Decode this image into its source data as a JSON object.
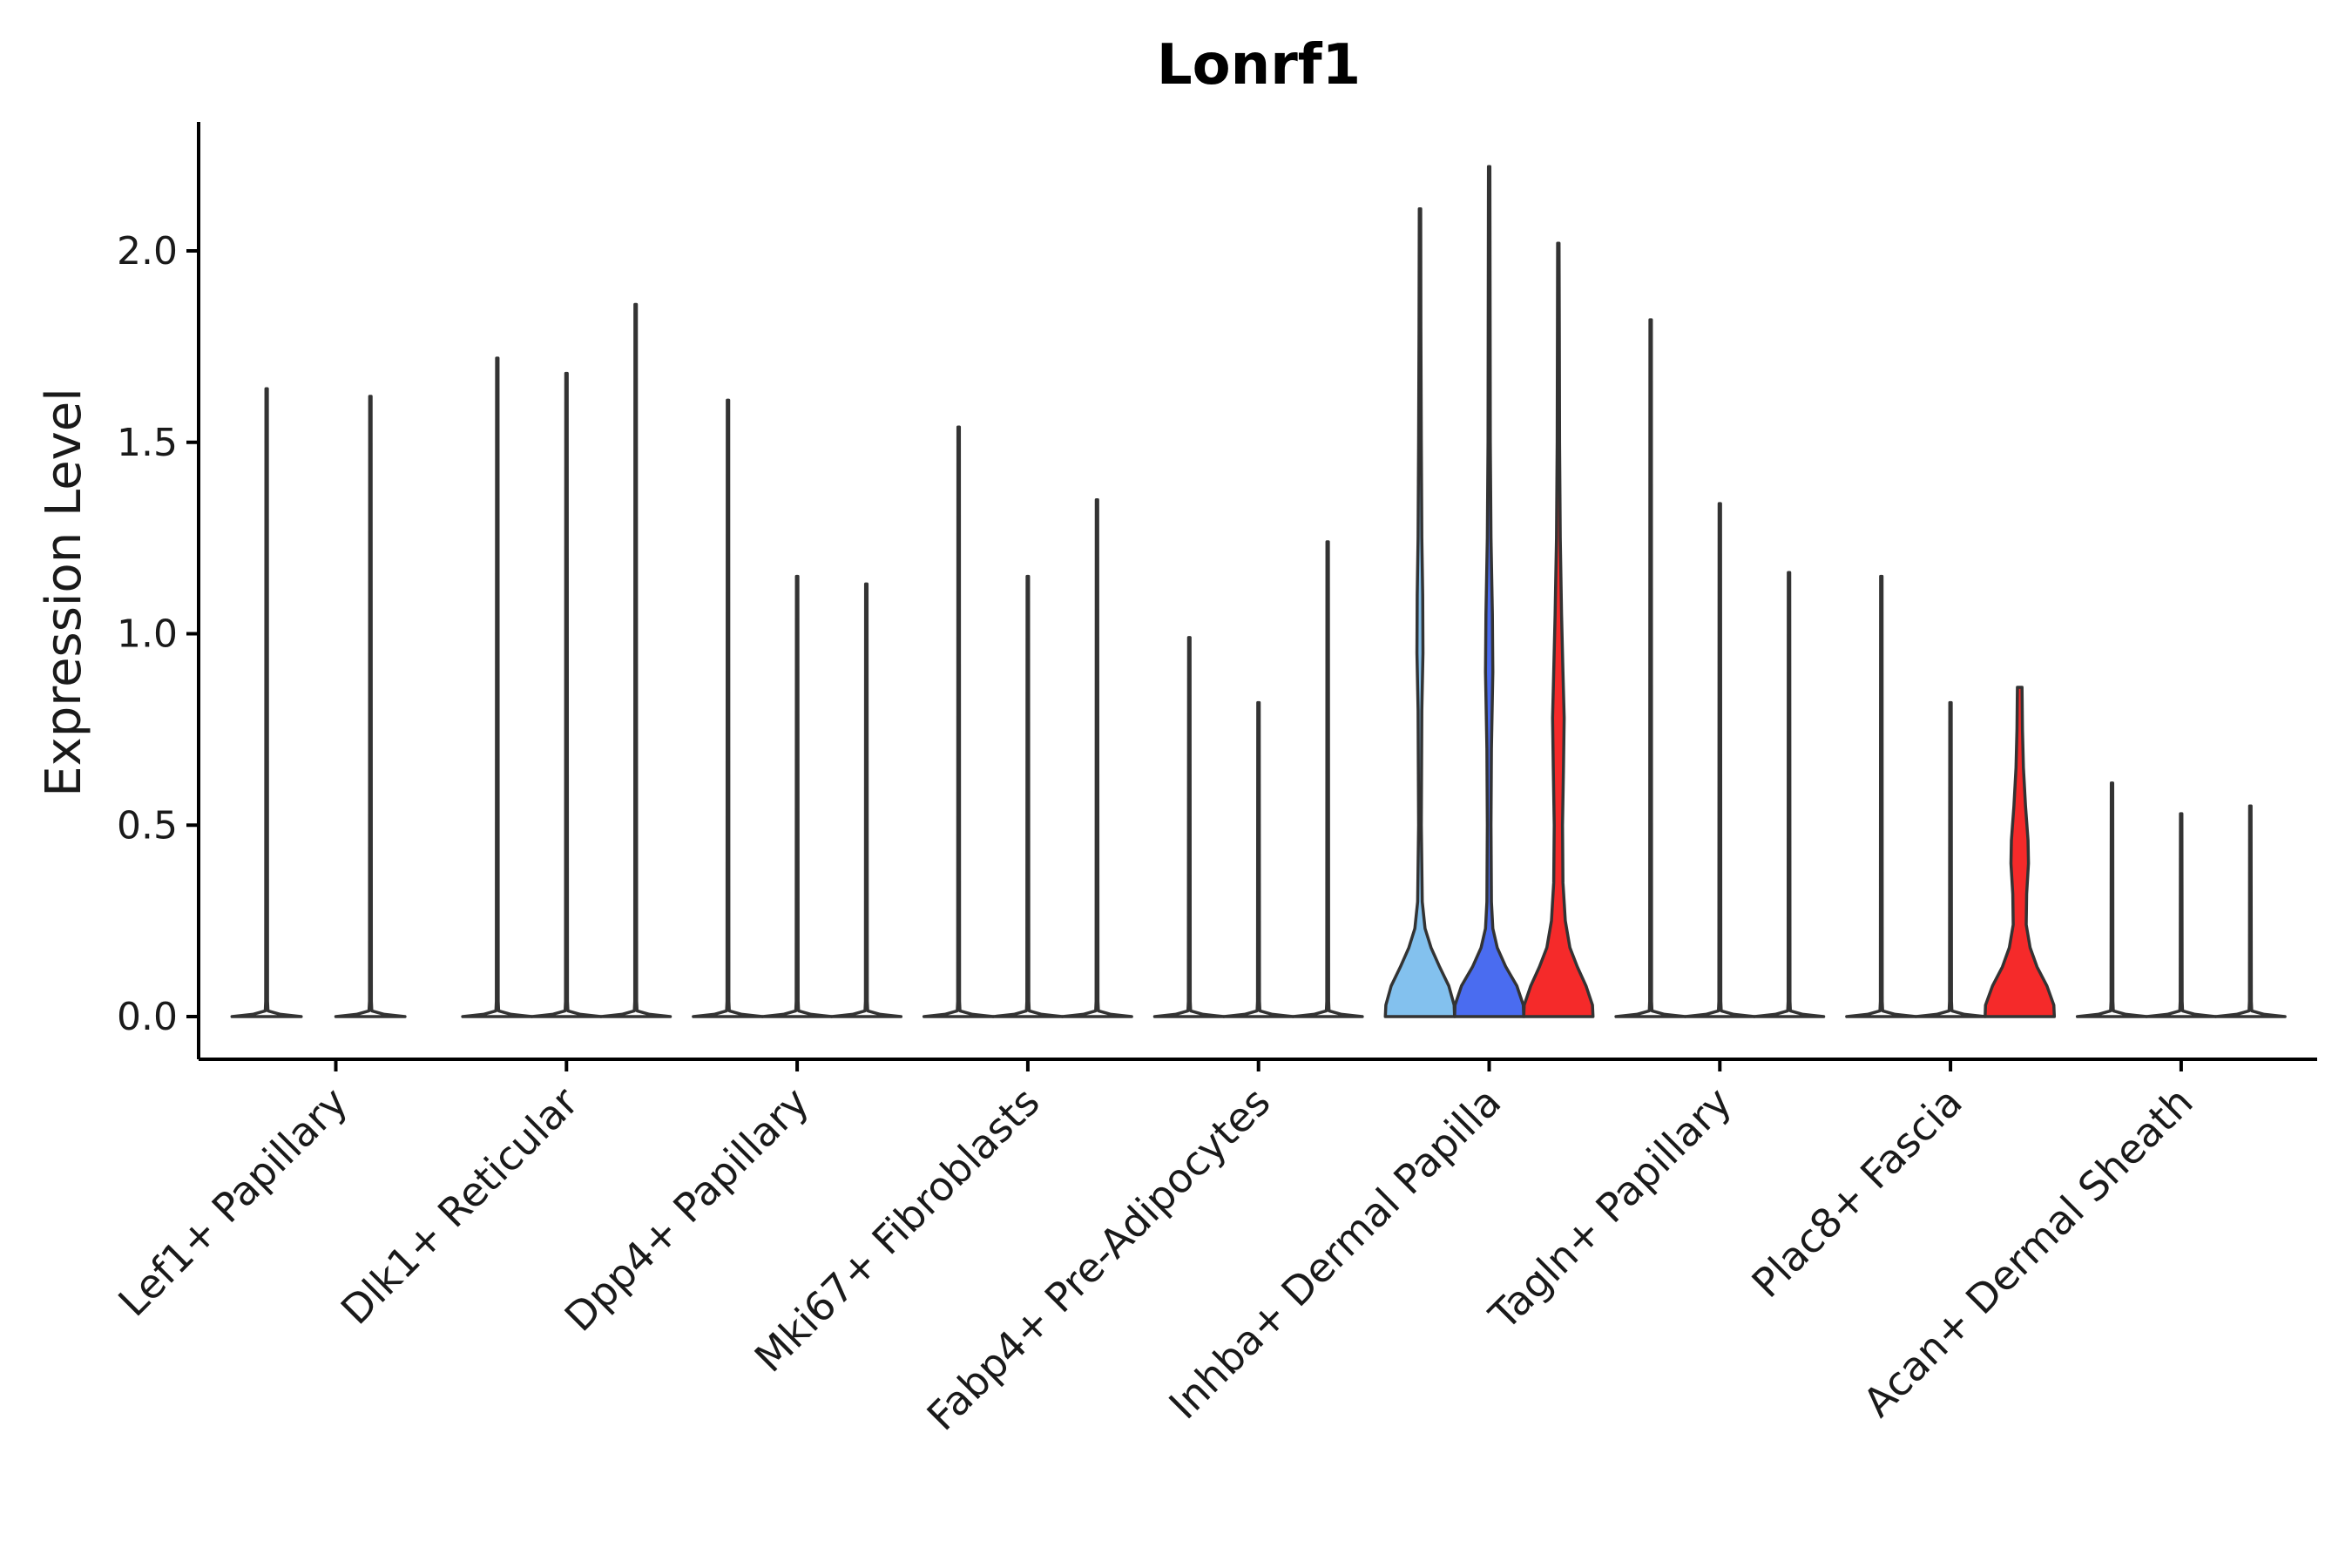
{
  "chart_data": {
    "type": "violin",
    "title": "Lonrf1",
    "xlabel": "",
    "ylabel": "Expression Level",
    "ylim": [
      -0.11,
      2.33
    ],
    "yticks": [
      0.0,
      0.5,
      1.0,
      1.5,
      2.0
    ],
    "ytick_labels": [
      "0.0",
      "0.5",
      "1.0",
      "1.5",
      "2.0"
    ],
    "grid": false,
    "legend": "none",
    "categories": [
      "Lef1+ Papillary",
      "Dlk1+ Reticular",
      "Dpp4+ Papillary",
      "Mki67+ Fibroblasts",
      "Fabp4+ Pre-Adipocytes",
      "Inhba+ Dermal Papilla",
      "Tagln+ Papillary",
      "Plac8+ Fascia",
      "Acan+ Dermal Sheath"
    ],
    "violins": [
      {
        "x": 0.7,
        "max": 1.64,
        "color": "#ffffff",
        "shape": "flat"
      },
      {
        "x": 1.15,
        "max": 1.62,
        "color": "#ffffff",
        "shape": "flat"
      },
      {
        "x": 1.7,
        "max": 1.72,
        "color": "#ffffff",
        "shape": "flat"
      },
      {
        "x": 2.0,
        "max": 1.68,
        "color": "#ffffff",
        "shape": "flat"
      },
      {
        "x": 2.3,
        "max": 1.86,
        "color": "#ffffff",
        "shape": "flat"
      },
      {
        "x": 2.7,
        "max": 1.61,
        "color": "#ffffff",
        "shape": "flat"
      },
      {
        "x": 3.0,
        "max": 1.15,
        "color": "#ffffff",
        "shape": "flat"
      },
      {
        "x": 3.3,
        "max": 1.13,
        "color": "#ffffff",
        "shape": "flat"
      },
      {
        "x": 3.7,
        "max": 1.54,
        "color": "#ffffff",
        "shape": "flat"
      },
      {
        "x": 4.0,
        "max": 1.15,
        "color": "#ffffff",
        "shape": "flat"
      },
      {
        "x": 4.3,
        "max": 1.35,
        "color": "#ffffff",
        "shape": "flat"
      },
      {
        "x": 4.7,
        "max": 0.99,
        "color": "#ffffff",
        "shape": "flat"
      },
      {
        "x": 5.0,
        "max": 0.82,
        "color": "#ffffff",
        "shape": "flat"
      },
      {
        "x": 5.3,
        "max": 1.24,
        "color": "#ffffff",
        "shape": "flat"
      },
      {
        "x": 5.7,
        "max": 2.11,
        "color": "#83c1ee",
        "shape": "wide-a"
      },
      {
        "x": 6.0,
        "max": 2.22,
        "color": "#4a6cf0",
        "shape": "wide-b"
      },
      {
        "x": 6.3,
        "max": 2.02,
        "color": "#f52a2a",
        "shape": "wide-c"
      },
      {
        "x": 6.7,
        "max": 1.82,
        "color": "#ffffff",
        "shape": "flat"
      },
      {
        "x": 7.0,
        "max": 1.34,
        "color": "#ffffff",
        "shape": "flat"
      },
      {
        "x": 7.3,
        "max": 1.16,
        "color": "#ffffff",
        "shape": "flat"
      },
      {
        "x": 7.7,
        "max": 1.15,
        "color": "#ffffff",
        "shape": "flat"
      },
      {
        "x": 8.0,
        "max": 0.82,
        "color": "#ffffff",
        "shape": "flat"
      },
      {
        "x": 8.3,
        "max": 0.86,
        "color": "#f52a2a",
        "shape": "wide-d"
      },
      {
        "x": 8.7,
        "max": 0.61,
        "color": "#ffffff",
        "shape": "flat"
      },
      {
        "x": 9.0,
        "max": 0.53,
        "color": "#ffffff",
        "shape": "flat"
      },
      {
        "x": 9.3,
        "max": 0.55,
        "color": "#ffffff",
        "shape": "flat"
      }
    ]
  }
}
